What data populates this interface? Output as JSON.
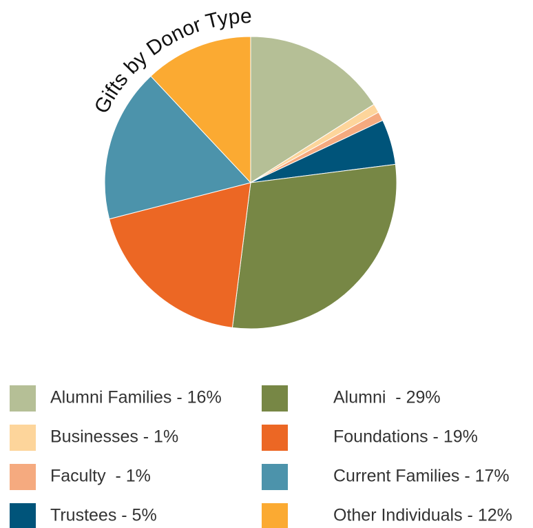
{
  "chart_data": {
    "type": "pie",
    "title": "Gifts by Donor Type",
    "categories": [
      "Alumni Families - 16%",
      "Businesses - 1%",
      "Faculty  - 1%",
      "Trustees - 5%",
      "Alumni  - 29%",
      "Foundations - 19%",
      "Current Families - 17%",
      "Other Individuals - 12%"
    ],
    "values": [
      16,
      1,
      1,
      5,
      29,
      19,
      17,
      12
    ],
    "colors": [
      "#b5bf96",
      "#fdd59b",
      "#f5aa7f",
      "#00547a",
      "#778745",
      "#ec6724",
      "#4c93ab",
      "#fbaa32"
    ]
  }
}
